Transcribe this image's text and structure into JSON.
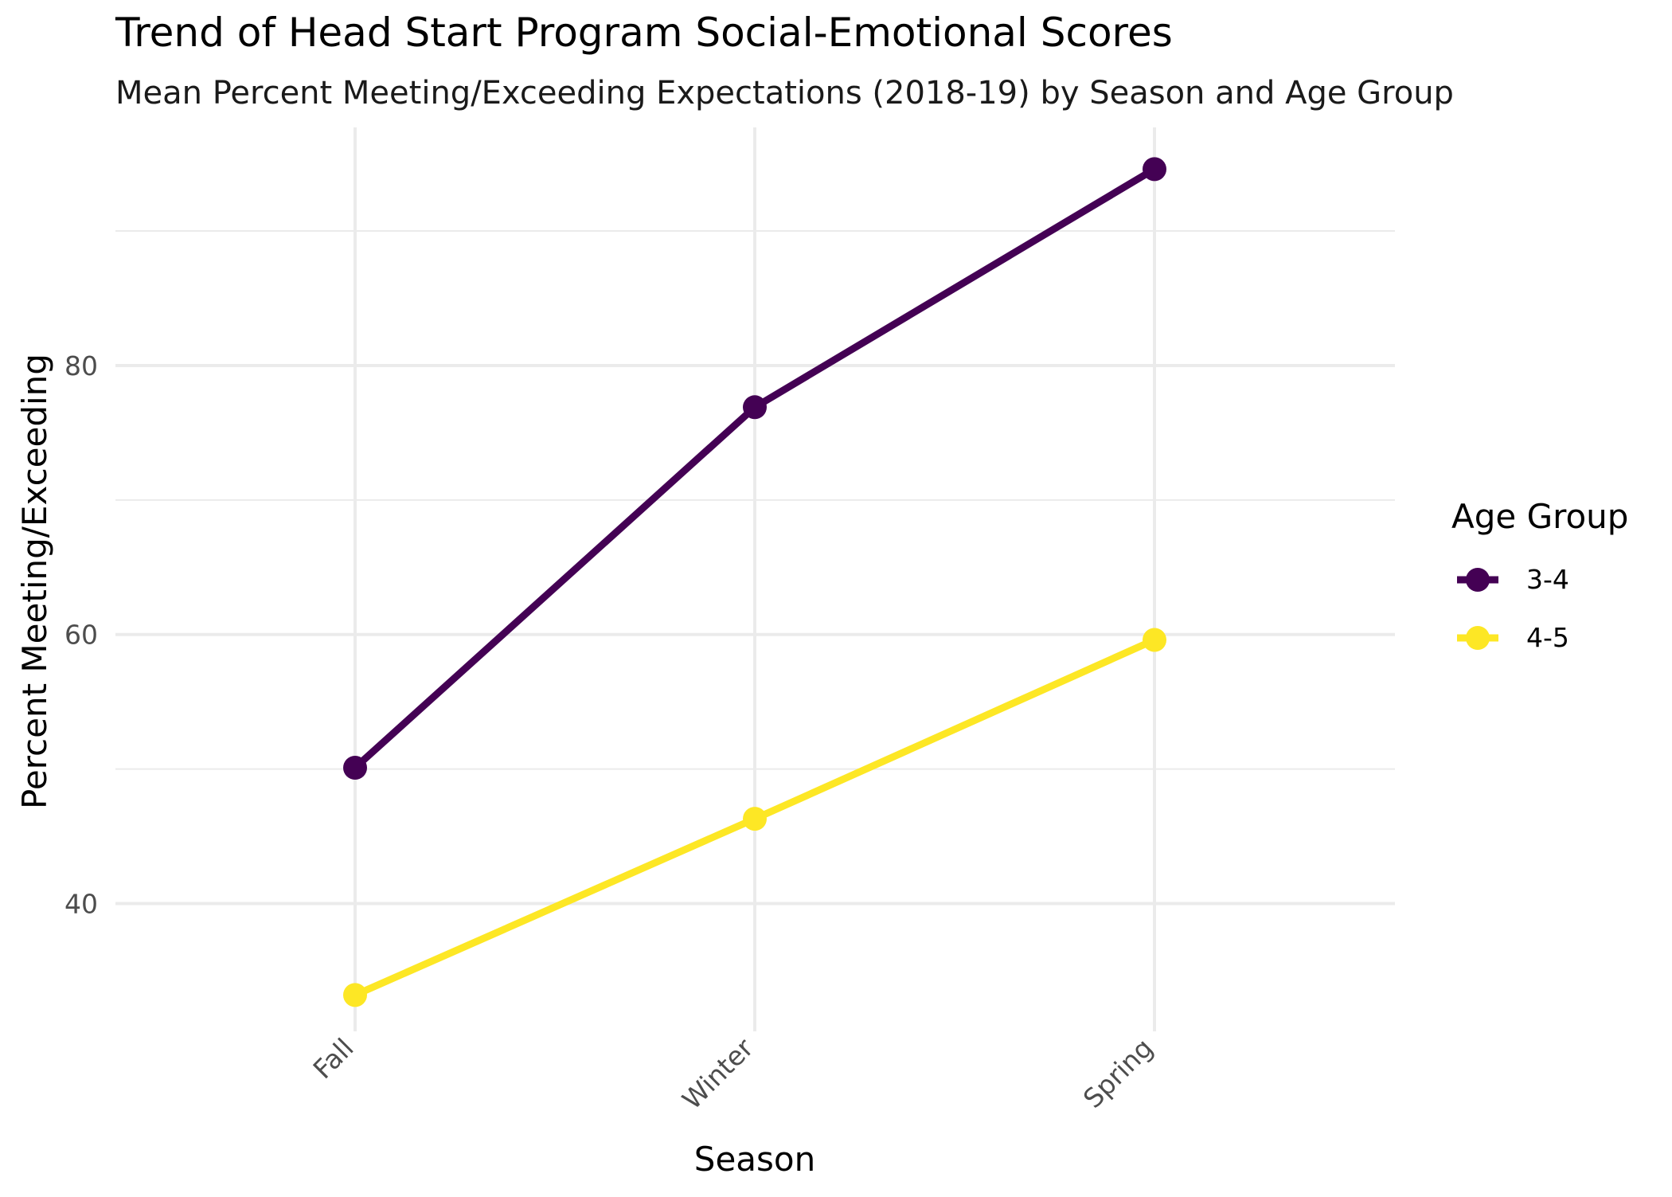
{
  "chart_data": {
    "type": "line",
    "title": "Trend of Head Start Program Social-Emotional Scores",
    "subtitle": "Mean Percent Meeting/Exceeding Expectations (2018-19) by Season and Age Group",
    "xlabel": "Season",
    "ylabel": "Percent Meeting/Exceeding",
    "categories": [
      "Fall",
      "Winter",
      "Spring"
    ],
    "ylim": [
      30.5,
      97.7
    ],
    "yticks": [
      40,
      60,
      80
    ],
    "grid": true,
    "legend": {
      "title": "Age Group",
      "position": "right"
    },
    "series": [
      {
        "name": "3-4",
        "color": "#440154",
        "values": [
          50.1,
          76.9,
          94.6
        ]
      },
      {
        "name": "4-5",
        "color": "#FDE725",
        "values": [
          33.2,
          46.3,
          59.6
        ]
      }
    ]
  }
}
